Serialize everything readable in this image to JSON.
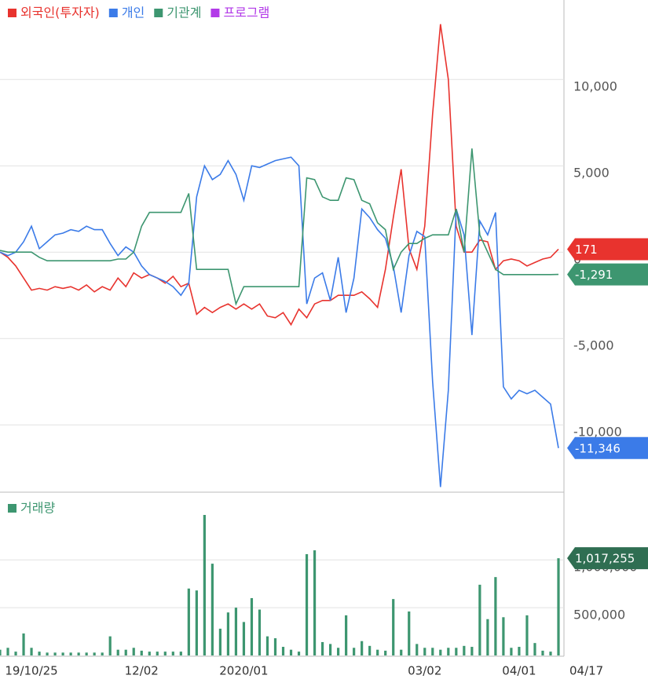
{
  "chart_data": [
    {
      "type": "line",
      "ylim": [
        -13900,
        14600
      ],
      "yticks": [
        {
          "value": 10000,
          "label": "10,000"
        },
        {
          "value": 5000,
          "label": "5,000"
        },
        0,
        {
          "value": -5000,
          "label": "-5,000"
        },
        {
          "value": -10000,
          "label": "-10,000"
        }
      ],
      "grid": true,
      "series": [
        {
          "name": "외국인(투자자)",
          "color": "#e8332e",
          "values": [
            0,
            -300,
            -800,
            -1500,
            -2200,
            -2100,
            -2200,
            -2000,
            -2100,
            -2000,
            -2200,
            -1900,
            -2300,
            -2000,
            -2200,
            -1500,
            -2000,
            -1200,
            -1500,
            -1300,
            -1500,
            -1800,
            -1400,
            -2000,
            -1800,
            -3600,
            -3200,
            -3500,
            -3200,
            -3000,
            -3300,
            -3000,
            -3300,
            -3000,
            -3700,
            -3800,
            -3500,
            -4200,
            -3300,
            -3800,
            -3000,
            -2800,
            -2800,
            -2500,
            -2500,
            -2500,
            -2300,
            -2700,
            -3200,
            -1000,
            2000,
            4800,
            200,
            -1000,
            1500,
            8000,
            13200,
            10000,
            1500,
            0,
            0,
            700,
            600,
            -1000,
            -500,
            -400,
            -500,
            -800,
            -600,
            -400,
            -300,
            171
          ]
        },
        {
          "name": "개인",
          "color": "#3b7be8",
          "values": [
            0,
            -200,
            0,
            600,
            1500,
            200,
            600,
            1000,
            1100,
            1300,
            1200,
            1500,
            1300,
            1300,
            500,
            -200,
            300,
            0,
            -800,
            -1300,
            -1500,
            -1700,
            -2000,
            -2500,
            -1800,
            3200,
            5000,
            4200,
            4500,
            5300,
            4500,
            3000,
            5000,
            4900,
            5100,
            5300,
            5400,
            5500,
            5000,
            -3000,
            -1500,
            -1200,
            -2800,
            -300,
            -3500,
            -1500,
            2500,
            2000,
            1300,
            800,
            -800,
            -3500,
            -200,
            1200,
            900,
            -7500,
            -13600,
            -8000,
            2500,
            1000,
            -4800,
            1800,
            1000,
            2300,
            -7800,
            -8500,
            -8000,
            -8200,
            -8000,
            -8400,
            -8800,
            -11346
          ],
          "value_labels": [
            null,
            null,
            null,
            null,
            null,
            null,
            null,
            null,
            null,
            null,
            null,
            null,
            null,
            null,
            null,
            null,
            null,
            null,
            null,
            null,
            null,
            null,
            null,
            null,
            null,
            null,
            null,
            null,
            null,
            null,
            null,
            null,
            null,
            null,
            null,
            null,
            null,
            null,
            null,
            null,
            null,
            null,
            null,
            null,
            null,
            null,
            null,
            null,
            null,
            null,
            null,
            null,
            null,
            null,
            null,
            null,
            null,
            null,
            null,
            null,
            null,
            null,
            null,
            null,
            null,
            null,
            null,
            null,
            null,
            null,
            null,
            "-11,346"
          ]
        },
        {
          "name": "기관계",
          "color": "#3d9670",
          "values": [
            100,
            0,
            0,
            0,
            0,
            -300,
            -500,
            -500,
            -500,
            -500,
            -500,
            -500,
            -500,
            -500,
            -500,
            -400,
            -400,
            0,
            1500,
            2300,
            2300,
            2300,
            2300,
            2300,
            3400,
            -1000,
            -1000,
            -1000,
            -1000,
            -1000,
            -3000,
            -2000,
            -2000,
            -2000,
            -2000,
            -2000,
            -2000,
            -2000,
            -2000,
            4300,
            4200,
            3200,
            3000,
            3000,
            4300,
            4200,
            3000,
            2800,
            1700,
            1300,
            -1000,
            0,
            500,
            500,
            800,
            1000,
            1000,
            1000,
            2500,
            0,
            6000,
            1000,
            0,
            -1000,
            -1300,
            -1300,
            -1300,
            -1300,
            -1300,
            -1300,
            -1300,
            -1291
          ],
          "value_labels": [
            null,
            null,
            null,
            null,
            null,
            null,
            null,
            null,
            null,
            null,
            null,
            null,
            null,
            null,
            null,
            null,
            null,
            null,
            null,
            null,
            null,
            null,
            null,
            null,
            null,
            null,
            null,
            null,
            null,
            null,
            null,
            null,
            null,
            null,
            null,
            null,
            null,
            null,
            null,
            null,
            null,
            null,
            null,
            null,
            null,
            null,
            null,
            null,
            null,
            null,
            null,
            null,
            null,
            null,
            null,
            null,
            null,
            null,
            null,
            null,
            null,
            null,
            null,
            null,
            null,
            null,
            null,
            null,
            null,
            null,
            null,
            "-1,291"
          ]
        }
      ],
      "inactive_series": [
        {
          "name": "프로그램",
          "color": "#b23ae8"
        }
      ]
    },
    {
      "type": "bar",
      "ylim": [
        0,
        1700000
      ],
      "yticks": [
        {
          "value": 500000,
          "label": "500,000"
        },
        {
          "value": 1000000,
          "label": "1,000,000"
        }
      ],
      "grid": true,
      "categories": [
        null,
        null,
        null,
        null,
        "19/10/25",
        null,
        null,
        null,
        null,
        null,
        null,
        null,
        null,
        null,
        null,
        null,
        null,
        null,
        "12/02",
        null,
        null,
        null,
        null,
        null,
        null,
        null,
        null,
        null,
        null,
        null,
        null,
        "2020/01",
        null,
        null,
        null,
        null,
        null,
        null,
        null,
        null,
        null,
        null,
        null,
        null,
        null,
        null,
        null,
        null,
        null,
        null,
        null,
        null,
        null,
        null,
        "03/02",
        null,
        null,
        null,
        null,
        null,
        null,
        null,
        null,
        null,
        null,
        null,
        "04/01",
        null,
        null,
        null,
        null,
        "04/17"
      ],
      "series": [
        {
          "name": "거래량",
          "color": "#3d9670",
          "values": [
            60000,
            80000,
            40000,
            230000,
            80000,
            40000,
            30000,
            30000,
            30000,
            30000,
            30000,
            30000,
            30000,
            30000,
            200000,
            60000,
            60000,
            80000,
            50000,
            40000,
            40000,
            40000,
            40000,
            40000,
            700000,
            680000,
            1470000,
            960000,
            280000,
            450000,
            500000,
            350000,
            600000,
            480000,
            200000,
            180000,
            90000,
            60000,
            40000,
            1060000,
            1100000,
            140000,
            120000,
            80000,
            420000,
            80000,
            150000,
            100000,
            60000,
            50000,
            590000,
            60000,
            460000,
            120000,
            80000,
            80000,
            60000,
            80000,
            80000,
            100000,
            90000,
            740000,
            380000,
            820000,
            400000,
            80000,
            90000,
            420000,
            130000,
            50000,
            40000,
            1017255
          ],
          "value_labels": [
            null,
            null,
            null,
            null,
            null,
            null,
            null,
            null,
            null,
            null,
            null,
            null,
            null,
            null,
            null,
            null,
            null,
            null,
            null,
            null,
            null,
            null,
            null,
            null,
            null,
            null,
            null,
            null,
            null,
            null,
            null,
            null,
            null,
            null,
            null,
            null,
            null,
            null,
            null,
            null,
            null,
            null,
            null,
            null,
            null,
            null,
            null,
            null,
            null,
            null,
            null,
            null,
            null,
            null,
            null,
            null,
            null,
            null,
            null,
            null,
            null,
            null,
            null,
            null,
            null,
            null,
            null,
            null,
            null,
            null,
            null,
            "1,017,255"
          ]
        }
      ]
    }
  ]
}
